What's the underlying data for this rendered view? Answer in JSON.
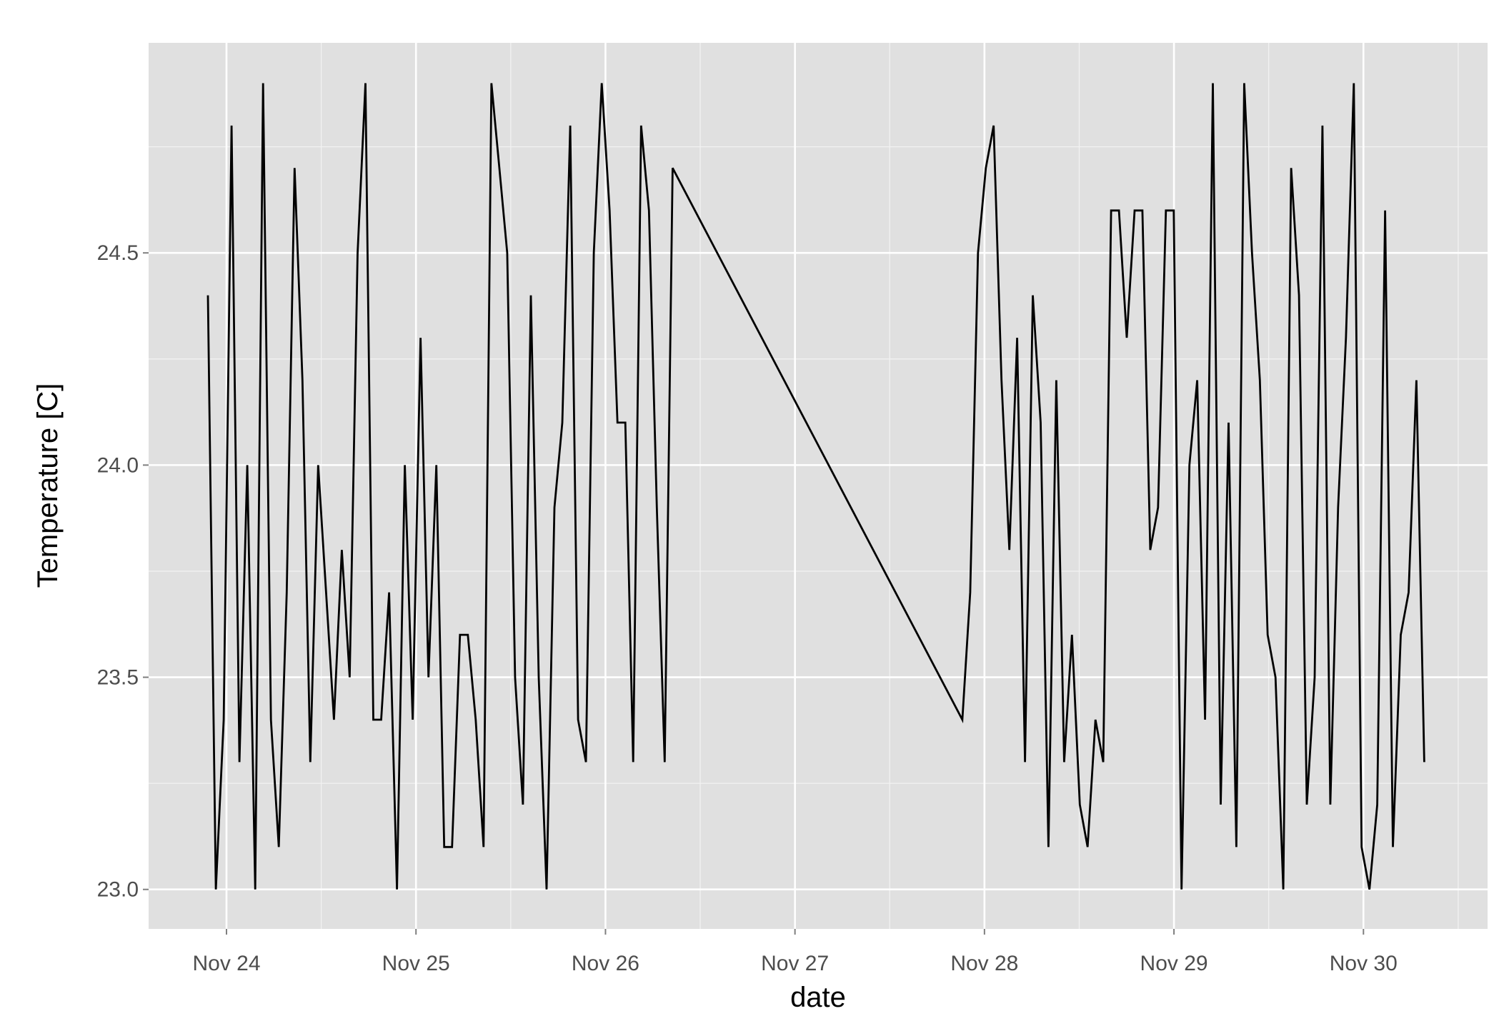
{
  "chart_data": {
    "type": "line",
    "title": "",
    "xlabel": "date",
    "ylabel": "Temperature [C]",
    "x_unit": "hours since Nov 24 00:00",
    "xlim_days": [
      -0.411,
      6.655
    ],
    "ylim": [
      22.907,
      24.995
    ],
    "grid": true,
    "x_ticks": [
      {
        "day": 0,
        "label": "Nov 24"
      },
      {
        "day": 1,
        "label": "Nov 25"
      },
      {
        "day": 2,
        "label": "Nov 26"
      },
      {
        "day": 3,
        "label": "Nov 27"
      },
      {
        "day": 4,
        "label": "Nov 28"
      },
      {
        "day": 5,
        "label": "Nov 29"
      },
      {
        "day": 6,
        "label": "Nov 30"
      }
    ],
    "y_ticks": [
      {
        "value": 23.0,
        "label": "23.0"
      },
      {
        "value": 23.5,
        "label": "23.5"
      },
      {
        "value": 24.0,
        "label": "24.0"
      },
      {
        "value": 24.5,
        "label": "24.5"
      }
    ],
    "line_color": "#000000",
    "panel_color": "#e0e0e0",
    "segments": [
      {
        "start_hours": -2.35,
        "end_hours": 56.5,
        "values": [
          24.4,
          23.0,
          23.4,
          24.8,
          23.3,
          24.0,
          23.0,
          24.9,
          23.4,
          23.1,
          23.7,
          24.7,
          24.2,
          23.3,
          24.0,
          23.7,
          23.4,
          23.8,
          23.5,
          24.5,
          24.9,
          23.4,
          23.4,
          23.7,
          23.0,
          24.0,
          23.4,
          24.3,
          23.5,
          24.0,
          23.1,
          23.1,
          23.6,
          23.6,
          23.4,
          23.1,
          24.9,
          24.7,
          24.5,
          23.5,
          23.2,
          24.4,
          23.5,
          23.0,
          23.9,
          24.1,
          24.8,
          23.4,
          23.3,
          24.5,
          24.9,
          24.6,
          24.1,
          24.1,
          23.3,
          24.8,
          24.6,
          23.9,
          23.3,
          24.7
        ]
      },
      {
        "start_hours": 93.2,
        "end_hours": 151.7,
        "values": [
          23.4,
          23.7,
          24.5,
          24.7,
          24.8,
          24.2,
          23.8,
          24.3,
          23.3,
          24.4,
          24.1,
          23.1,
          24.2,
          23.3,
          23.6,
          23.2,
          23.1,
          23.4,
          23.3,
          24.6,
          24.6,
          24.3,
          24.6,
          24.6,
          23.8,
          23.9,
          24.6,
          24.6,
          23.0,
          24.0,
          24.2,
          23.4,
          24.9,
          23.2,
          24.1,
          23.1,
          24.9,
          24.5,
          24.2,
          23.6,
          23.5,
          23.0,
          24.7,
          24.4,
          23.2,
          23.5,
          24.8,
          23.2,
          23.9,
          24.3,
          24.9,
          23.1,
          23.0,
          23.2,
          24.6,
          23.1,
          23.6,
          23.7,
          24.2,
          23.3
        ]
      }
    ]
  }
}
